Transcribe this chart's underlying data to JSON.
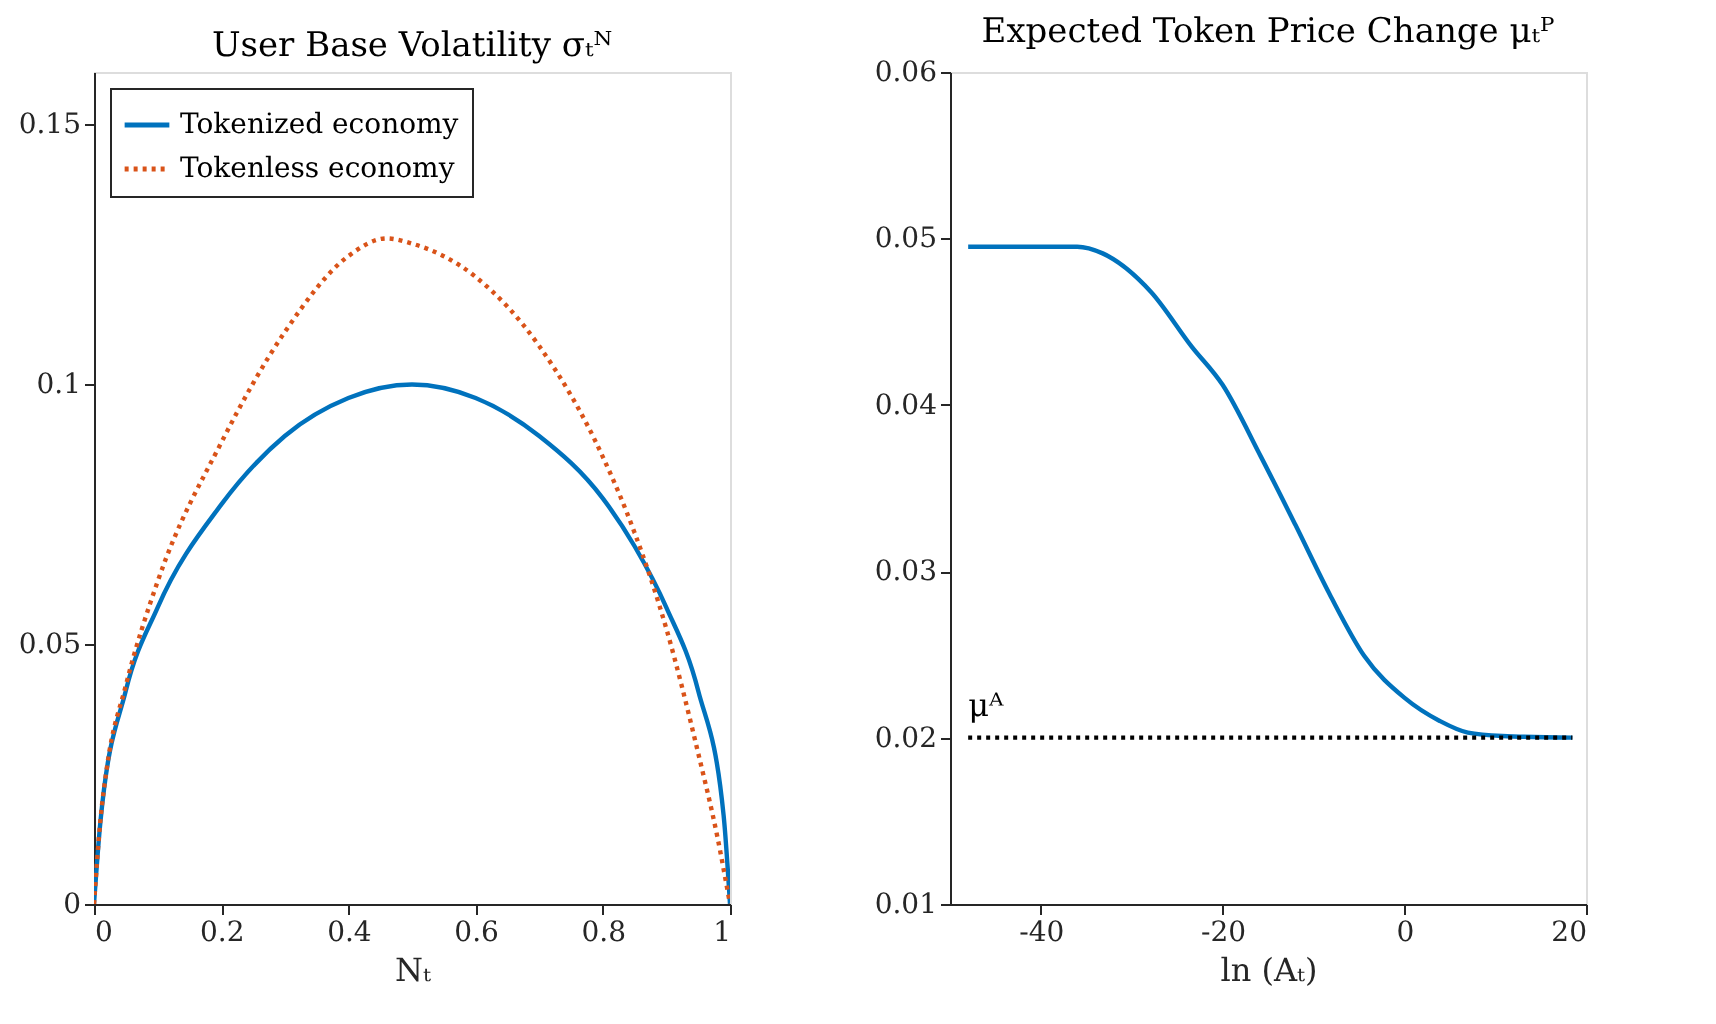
{
  "chart_data": [
    {
      "type": "line",
      "title": "User Base Volatility σₜᴺ",
      "xlabel": "Nₜ",
      "xlim": [
        0,
        1
      ],
      "xticks": [
        0,
        0.2,
        0.4,
        0.6,
        0.8,
        1
      ],
      "ylim": [
        0,
        0.16
      ],
      "yticks": [
        0,
        0.05,
        0.1,
        0.15
      ],
      "grid": false,
      "legend": "top left",
      "series": [
        {
          "name": "Tokenized economy",
          "color": "#0072bd",
          "line_style": "solid",
          "x": [
            0,
            0.01,
            0.05,
            0.1,
            0.2,
            0.3,
            0.4,
            0.5,
            0.6,
            0.7,
            0.8,
            0.85,
            0.9,
            0.95,
            0.99,
            1
          ],
          "values": [
            0,
            0.0157,
            0.041,
            0.057,
            0.0768,
            0.09,
            0.0973,
            0.0999,
            0.0973,
            0.09,
            0.078,
            0.0688,
            0.057,
            0.041,
            0.017,
            0
          ]
        },
        {
          "name": "Tokenless economy",
          "color": "#d95319",
          "line_style": "dotted",
          "x": [
            0,
            0.01,
            0.02,
            0.05,
            0.1,
            0.2,
            0.3,
            0.4,
            0.46,
            0.5,
            0.6,
            0.7,
            0.8,
            0.85,
            0.9,
            0.95,
            0.98,
            1
          ],
          "values": [
            0,
            0.016,
            0.026,
            0.042,
            0.062,
            0.0887,
            0.11,
            0.1246,
            0.128,
            0.127,
            0.1206,
            0.1073,
            0.086,
            0.0714,
            0.0529,
            0.029,
            0.013,
            0
          ]
        }
      ]
    },
    {
      "type": "line",
      "title": "Expected Token Price Change μₜᴾ",
      "xlabel": "ln (Aₜ)",
      "xlim": [
        -50,
        20
      ],
      "xticks": [
        -40,
        -20,
        0,
        20
      ],
      "ylim": [
        0.01,
        0.06
      ],
      "yticks": [
        0.01,
        0.02,
        0.03,
        0.04,
        0.05,
        0.06
      ],
      "grid": false,
      "legend": false,
      "series": [
        {
          "color": "#0072bd",
          "line_style": "solid",
          "x": [
            -48,
            -36,
            -33.2,
            -27.9,
            -23.4,
            -20,
            -15.8,
            -12,
            -8.2,
            -4.4,
            0,
            3.9,
            7,
            10.8,
            18.5
          ],
          "values": [
            0.0495,
            0.0495,
            0.0491,
            0.0468,
            0.0435,
            0.0412,
            0.0369,
            0.0328,
            0.0286,
            0.0249,
            0.0224,
            0.021,
            0.0203,
            0.0201,
            0.02
          ]
        },
        {
          "name": "μᴬ",
          "color": "#000000",
          "line_style": "dotted",
          "x": [
            -48,
            18.5
          ],
          "values": [
            0.02,
            0.02
          ]
        }
      ]
    }
  ]
}
